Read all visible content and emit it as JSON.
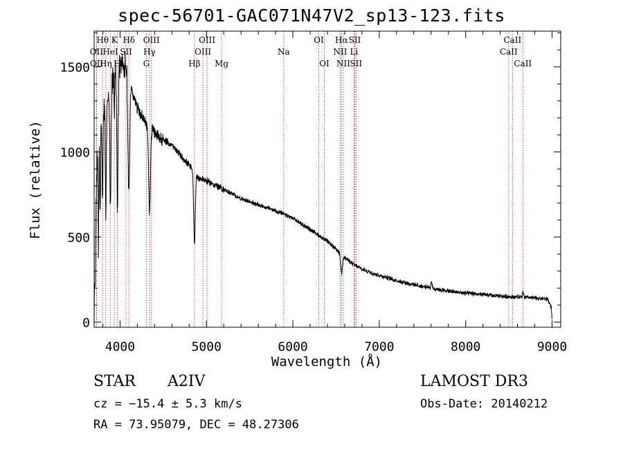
{
  "chart_data": {
    "type": "line",
    "title": "spec-56701-GAC071N47V2_sp13-123.fits",
    "xlabel": "Wavelength (Å)",
    "ylabel": "Flux (relative)",
    "xlim": [
      3700,
      9100
    ],
    "ylim": [
      -30,
      1710
    ],
    "x_ticks": [
      4000,
      5000,
      6000,
      7000,
      8000,
      9000
    ],
    "y_ticks": [
      0,
      500,
      1000,
      1500
    ],
    "grid": false,
    "line_color": "#000000",
    "marker_color": "#b22222",
    "spectrum_anchors": [
      {
        "x": 3700,
        "y": 10
      },
      {
        "x": 3710,
        "y": 250
      },
      {
        "x": 3730,
        "y": 900
      },
      {
        "x": 3760,
        "y": 1050
      },
      {
        "x": 3800,
        "y": 1250
      },
      {
        "x": 3840,
        "y": 1300
      },
      {
        "x": 3880,
        "y": 1380
      },
      {
        "x": 3920,
        "y": 1440
      },
      {
        "x": 3960,
        "y": 1480
      },
      {
        "x": 4000,
        "y": 1520
      },
      {
        "x": 4030,
        "y": 1520
      },
      {
        "x": 4060,
        "y": 1500
      },
      {
        "x": 4100,
        "y": 1440
      },
      {
        "x": 4150,
        "y": 1340
      },
      {
        "x": 4200,
        "y": 1260
      },
      {
        "x": 4250,
        "y": 1210
      },
      {
        "x": 4300,
        "y": 1170
      },
      {
        "x": 4400,
        "y": 1110
      },
      {
        "x": 4500,
        "y": 1070
      },
      {
        "x": 4600,
        "y": 1040
      },
      {
        "x": 4700,
        "y": 980
      },
      {
        "x": 4800,
        "y": 920
      },
      {
        "x": 4900,
        "y": 850
      },
      {
        "x": 5000,
        "y": 830
      },
      {
        "x": 5200,
        "y": 780
      },
      {
        "x": 5400,
        "y": 725
      },
      {
        "x": 5600,
        "y": 690
      },
      {
        "x": 5800,
        "y": 655
      },
      {
        "x": 6000,
        "y": 610
      },
      {
        "x": 6200,
        "y": 545
      },
      {
        "x": 6400,
        "y": 475
      },
      {
        "x": 6600,
        "y": 380
      },
      {
        "x": 6700,
        "y": 340
      },
      {
        "x": 6800,
        "y": 310
      },
      {
        "x": 7000,
        "y": 275
      },
      {
        "x": 7200,
        "y": 245
      },
      {
        "x": 7400,
        "y": 220
      },
      {
        "x": 7600,
        "y": 200
      },
      {
        "x": 7800,
        "y": 182
      },
      {
        "x": 8000,
        "y": 170
      },
      {
        "x": 8200,
        "y": 162
      },
      {
        "x": 8400,
        "y": 152
      },
      {
        "x": 8600,
        "y": 148
      },
      {
        "x": 8800,
        "y": 142
      },
      {
        "x": 8950,
        "y": 135
      },
      {
        "x": 8990,
        "y": 90
      },
      {
        "x": 9000,
        "y": 10
      }
    ],
    "absorption_features": [
      {
        "center": 3750,
        "depth": 520,
        "width": 4
      },
      {
        "center": 3771,
        "depth": 480,
        "width": 4
      },
      {
        "center": 3798,
        "depth": 560,
        "width": 5
      },
      {
        "center": 3835,
        "depth": 640,
        "width": 6
      },
      {
        "center": 3889,
        "depth": 720,
        "width": 7
      },
      {
        "center": 3934,
        "depth": 240,
        "width": 3
      },
      {
        "center": 3970,
        "depth": 780,
        "width": 8
      },
      {
        "center": 4102,
        "depth": 660,
        "width": 10
      },
      {
        "center": 4341,
        "depth": 500,
        "width": 10
      },
      {
        "center": 4861,
        "depth": 420,
        "width": 9
      },
      {
        "center": 6563,
        "depth": 110,
        "width": 10
      }
    ],
    "emission_features": [
      {
        "center": 7605,
        "height": 45,
        "width": 6
      },
      {
        "center": 8665,
        "height": 35,
        "width": 6
      }
    ],
    "line_markers": [
      {
        "label": "Hθ",
        "wavelength": 3798,
        "row": 1
      },
      {
        "label": "OII",
        "wavelength": 3727,
        "row": 2
      },
      {
        "label": "OII",
        "wavelength": 3729,
        "row": 3
      },
      {
        "label": "Hη",
        "wavelength": 3835,
        "row": 3
      },
      {
        "label": "HeI",
        "wavelength": 3889,
        "row": 2
      },
      {
        "label": "K",
        "wavelength": 3934,
        "row": 1
      },
      {
        "label": "H",
        "wavelength": 3969,
        "row": 3
      },
      {
        "label": "SII",
        "wavelength": 4069,
        "row": 2
      },
      {
        "label": "Hδ",
        "wavelength": 4102,
        "row": 1
      },
      {
        "label": "OIII",
        "wavelength": 4363,
        "row": 1
      },
      {
        "label": "Hγ",
        "wavelength": 4341,
        "row": 2
      },
      {
        "label": "G",
        "wavelength": 4305,
        "row": 3
      },
      {
        "label": "Hβ",
        "wavelength": 4861,
        "row": 3
      },
      {
        "label": "OIII",
        "wavelength": 5007,
        "row": 1
      },
      {
        "label": "OIII",
        "wavelength": 4959,
        "row": 2
      },
      {
        "label": "Mg",
        "wavelength": 5175,
        "row": 3
      },
      {
        "label": "Na",
        "wavelength": 5894,
        "row": 2
      },
      {
        "label": "OI",
        "wavelength": 6300,
        "row": 1
      },
      {
        "label": "OI",
        "wavelength": 6364,
        "row": 3
      },
      {
        "label": "Hα",
        "wavelength": 6563,
        "row": 1
      },
      {
        "label": "NII",
        "wavelength": 6548,
        "row": 2
      },
      {
        "label": "NII",
        "wavelength": 6584,
        "row": 3
      },
      {
        "label": "SII",
        "wavelength": 6717,
        "row": 1
      },
      {
        "label": "Li",
        "wavelength": 6708,
        "row": 2
      },
      {
        "label": "SII",
        "wavelength": 6731,
        "row": 3
      },
      {
        "label": "CaII",
        "wavelength": 8542,
        "row": 1
      },
      {
        "label": "CaII",
        "wavelength": 8498,
        "row": 2
      },
      {
        "label": "CaII",
        "wavelength": 8662,
        "row": 3
      }
    ]
  },
  "info": {
    "object_class": "STAR",
    "subclass": "A2IV",
    "survey": "LAMOST DR3",
    "redshift": "cz = −15.4 ± 5.3 km/s",
    "obs_date": "Obs-Date: 20140212",
    "coords": "RA =  73.95079, DEC =  48.27306"
  }
}
